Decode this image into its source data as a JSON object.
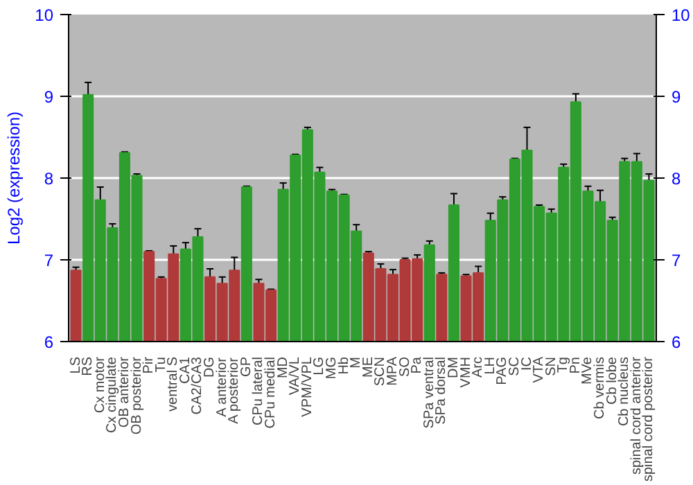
{
  "chart_data": {
    "type": "bar",
    "ylabel": "Log2 (expression)",
    "categories": [
      "LS",
      "RS",
      "Cx motor",
      "Cx cingulate",
      "OB anterior",
      "OB posterior",
      "Pir",
      "Tu",
      "ventral S",
      "CA1",
      "CA2/CA3",
      "DG",
      "A anterior",
      "A posterior",
      "GP",
      "CPu lateral",
      "CPu medial",
      "MD",
      "VA/VL",
      "VPM/VPL",
      "LG",
      "MG",
      "Hb",
      "M",
      "ME",
      "SCN",
      "MPA",
      "SO",
      "Pa",
      "SPa ventral",
      "SPa dorsal",
      "DM",
      "VMH",
      "Arc",
      "LH",
      "PAG",
      "SC",
      "IC",
      "VTA",
      "SN",
      "Tg",
      "Pn",
      "MVe",
      "Cb vermis",
      "Cb lobe",
      "Cb nucleus",
      "spinal cord anterior",
      "spinal cord posterior"
    ],
    "values": [
      6.87,
      9.02,
      7.73,
      7.39,
      8.31,
      8.03,
      7.1,
      6.77,
      7.07,
      7.13,
      7.28,
      6.79,
      6.71,
      6.87,
      7.89,
      6.71,
      6.63,
      7.86,
      8.28,
      8.59,
      8.07,
      7.84,
      7.79,
      7.35,
      7.08,
      6.89,
      6.82,
      7.0,
      7.01,
      7.18,
      6.82,
      7.67,
      6.8,
      6.84,
      7.48,
      7.73,
      8.23,
      8.34,
      7.65,
      7.57,
      8.13,
      8.93,
      7.84,
      7.71,
      7.48,
      8.2,
      8.2,
      7.97
    ],
    "errors": [
      0.04,
      0.15,
      0.16,
      0.05,
      0.01,
      0.02,
      0.01,
      0.02,
      0.1,
      0.08,
      0.1,
      0.1,
      0.08,
      0.16,
      0.01,
      0.05,
      0.01,
      0.08,
      0.01,
      0.03,
      0.06,
      0.02,
      0.01,
      0.08,
      0.02,
      0.06,
      0.06,
      0.02,
      0.05,
      0.05,
      0.02,
      0.14,
      0.02,
      0.08,
      0.09,
      0.04,
      0.01,
      0.28,
      0.02,
      0.05,
      0.04,
      0.1,
      0.06,
      0.14,
      0.04,
      0.04,
      0.1,
      0.08
    ],
    "colors": [
      "#b03a3a",
      "#2e9e2e",
      "#2e9e2e",
      "#2e9e2e",
      "#2e9e2e",
      "#2e9e2e",
      "#b03a3a",
      "#b03a3a",
      "#b03a3a",
      "#2e9e2e",
      "#2e9e2e",
      "#b03a3a",
      "#b03a3a",
      "#b03a3a",
      "#2e9e2e",
      "#b03a3a",
      "#b03a3a",
      "#2e9e2e",
      "#2e9e2e",
      "#2e9e2e",
      "#2e9e2e",
      "#2e9e2e",
      "#2e9e2e",
      "#2e9e2e",
      "#b03a3a",
      "#b03a3a",
      "#b03a3a",
      "#b03a3a",
      "#b03a3a",
      "#2e9e2e",
      "#b03a3a",
      "#2e9e2e",
      "#b03a3a",
      "#b03a3a",
      "#2e9e2e",
      "#2e9e2e",
      "#2e9e2e",
      "#2e9e2e",
      "#2e9e2e",
      "#2e9e2e",
      "#2e9e2e",
      "#2e9e2e",
      "#2e9e2e",
      "#2e9e2e",
      "#2e9e2e",
      "#2e9e2e",
      "#2e9e2e",
      "#2e9e2e"
    ],
    "ylim": [
      6,
      10
    ],
    "yticks": [
      6,
      7,
      8,
      9,
      10
    ],
    "y2lim": [
      6,
      10
    ],
    "y2ticks": [
      6,
      7,
      8,
      9,
      10
    ],
    "grid": "y"
  }
}
